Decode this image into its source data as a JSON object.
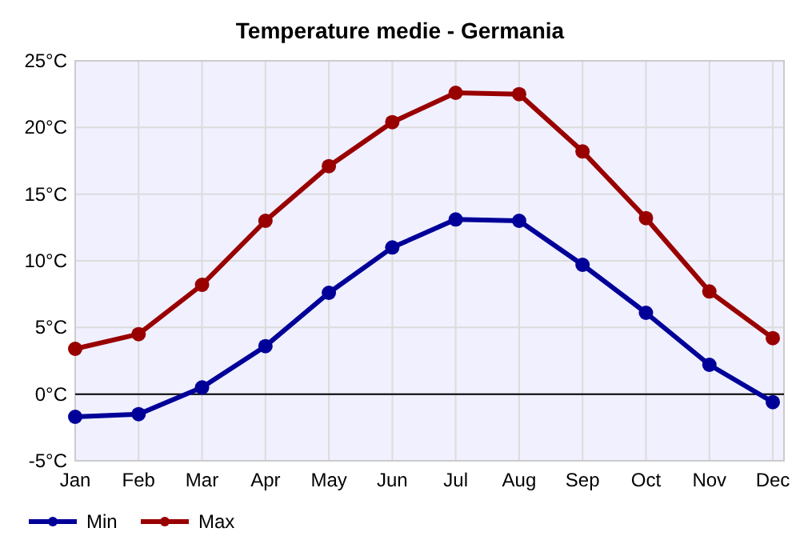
{
  "chart_data": {
    "type": "line",
    "title": "Temperature medie - Germania",
    "categories": [
      "Jan",
      "Feb",
      "Mar",
      "Apr",
      "May",
      "Jun",
      "Jul",
      "Aug",
      "Sep",
      "Oct",
      "Nov",
      "Dec"
    ],
    "series": [
      {
        "name": "Min",
        "color": "#000099",
        "values": [
          -1.7,
          -1.5,
          0.5,
          3.6,
          7.6,
          11.0,
          13.1,
          13.0,
          9.7,
          6.1,
          2.2,
          -0.6
        ]
      },
      {
        "name": "Max",
        "color": "#990000",
        "values": [
          3.4,
          4.5,
          8.2,
          13.0,
          17.1,
          20.4,
          22.6,
          22.5,
          18.2,
          13.2,
          7.7,
          4.2
        ]
      }
    ],
    "ylim": [
      -5,
      25
    ],
    "yticks": [
      {
        "value": -5,
        "label": "-5°C"
      },
      {
        "value": 0,
        "label": "0°C"
      },
      {
        "value": 5,
        "label": "5°C"
      },
      {
        "value": 10,
        "label": "10°C"
      },
      {
        "value": 15,
        "label": "15°C"
      },
      {
        "value": 20,
        "label": "20°C"
      },
      {
        "value": 25,
        "label": "25°C"
      }
    ],
    "ref_lines": [
      {
        "axis": "y",
        "value": 0,
        "color": "#000000"
      }
    ],
    "grid": true,
    "legend": "bottom left",
    "marker": "circle",
    "line_style": "solid"
  }
}
